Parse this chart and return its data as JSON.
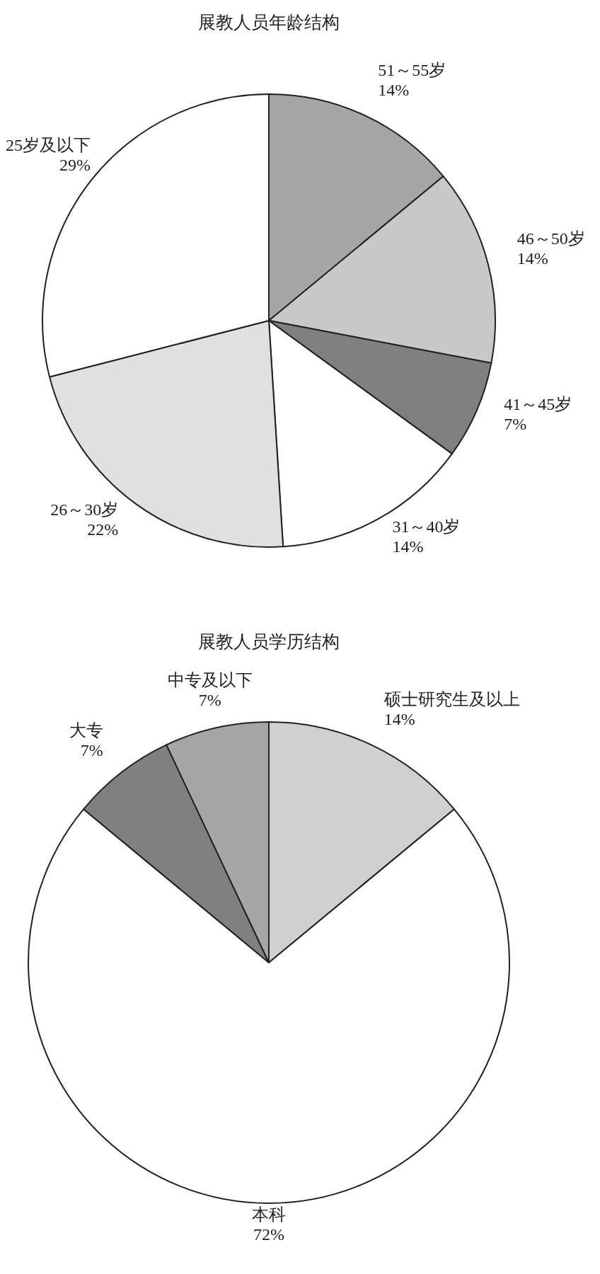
{
  "chart_data": [
    {
      "type": "pie",
      "title": "展教人员年龄结构",
      "categories": [
        "51～55岁",
        "46～50岁",
        "41～45岁",
        "31～40岁",
        "26～30岁",
        "25岁及以下"
      ],
      "values": [
        14,
        14,
        7,
        14,
        22,
        29
      ],
      "colors": [
        "#a6a6a6",
        "#c8c8c8",
        "#808080",
        "#ffffff",
        "#e0e0e0",
        "#ffffff"
      ],
      "value_labels": [
        "14%",
        "14%",
        "7%",
        "14%",
        "22%",
        "29%"
      ]
    },
    {
      "type": "pie",
      "title": "展教人员学历结构",
      "categories": [
        "硕士研究生及以上",
        "本科",
        "大专",
        "中专及以下"
      ],
      "values": [
        14,
        72,
        7,
        7
      ],
      "colors": [
        "#d0d0d0",
        "#ffffff",
        "#808080",
        "#a6a6a6"
      ],
      "value_labels": [
        "14%",
        "72%",
        "7%",
        "7%"
      ]
    }
  ]
}
